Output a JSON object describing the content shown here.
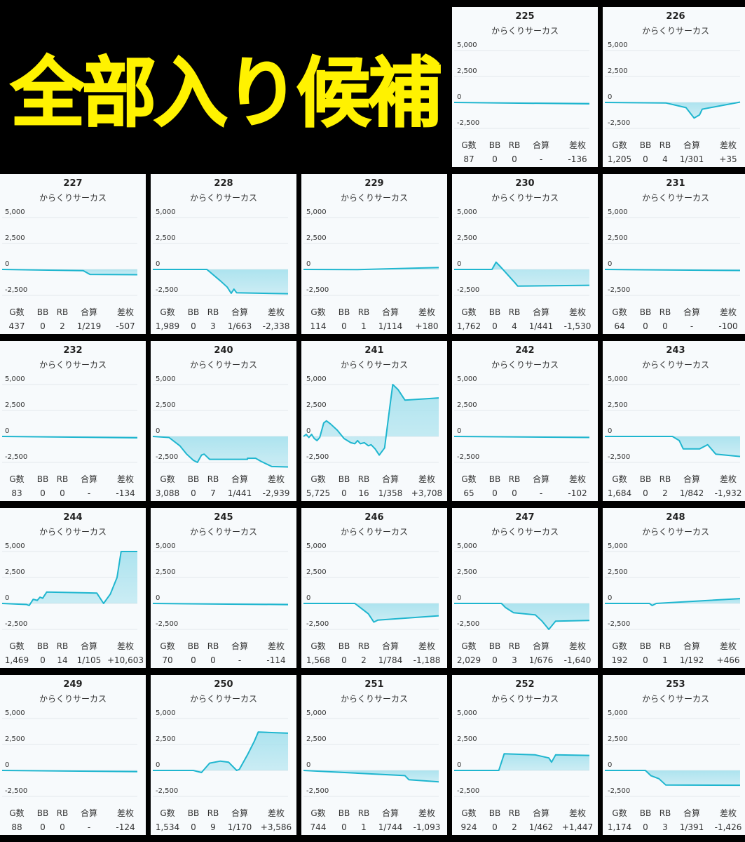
{
  "banner": {
    "text": "全部入り候補"
  },
  "colors": {
    "line": "#1fb6cf",
    "fill": "#a9e2ee",
    "card_bg": "#f7fafc",
    "banner_text": "#fff200"
  },
  "chart_data": {
    "type": "area",
    "y_ticks": [
      "5,000",
      "2,500",
      "0",
      "-2,500"
    ],
    "ylim": [
      -2500,
      5000
    ],
    "stats_headers": [
      "G数",
      "BB",
      "RB",
      "合算",
      "差枚"
    ],
    "machines": [
      {
        "id": "225",
        "name": "からくりサーカス",
        "stats": [
          "87",
          "0",
          "0",
          "-",
          "-136"
        ],
        "series": [
          [
            0,
            0
          ],
          [
            1,
            -136
          ]
        ]
      },
      {
        "id": "226",
        "name": "からくりサーカス",
        "stats": [
          "1,205",
          "0",
          "4",
          "1/301",
          "+35"
        ],
        "series": [
          [
            0,
            0
          ],
          [
            0.45,
            -50
          ],
          [
            0.6,
            -500
          ],
          [
            0.66,
            -1500
          ],
          [
            0.7,
            -1200
          ],
          [
            0.72,
            -650
          ],
          [
            1,
            35
          ]
        ]
      },
      {
        "id": "227",
        "name": "からくりサーカス",
        "stats": [
          "437",
          "0",
          "2",
          "1/219",
          "-507"
        ],
        "series": [
          [
            0,
            0
          ],
          [
            0.6,
            -120
          ],
          [
            0.65,
            -480
          ],
          [
            1,
            -507
          ]
        ]
      },
      {
        "id": "228",
        "name": "からくりサーカス",
        "stats": [
          "1,989",
          "0",
          "3",
          "1/663",
          "-2,338"
        ],
        "series": [
          [
            0,
            0
          ],
          [
            0.4,
            0
          ],
          [
            0.5,
            -1100
          ],
          [
            0.55,
            -1700
          ],
          [
            0.58,
            -2300
          ],
          [
            0.6,
            -1900
          ],
          [
            0.62,
            -2250
          ],
          [
            1,
            -2338
          ]
        ]
      },
      {
        "id": "229",
        "name": "からくりサーカス",
        "stats": [
          "114",
          "0",
          "1",
          "1/114",
          "+180"
        ],
        "series": [
          [
            0,
            0
          ],
          [
            0.4,
            -20
          ],
          [
            1,
            180
          ]
        ]
      },
      {
        "id": "230",
        "name": "からくりサーカス",
        "stats": [
          "1,762",
          "0",
          "4",
          "1/441",
          "-1,530"
        ],
        "series": [
          [
            0,
            0
          ],
          [
            0.28,
            0
          ],
          [
            0.31,
            700
          ],
          [
            0.34,
            300
          ],
          [
            0.45,
            -1300
          ],
          [
            0.47,
            -1600
          ],
          [
            1,
            -1530
          ]
        ]
      },
      {
        "id": "231",
        "name": "からくりサーカス",
        "stats": [
          "64",
          "0",
          "0",
          "-",
          "-100"
        ],
        "series": [
          [
            0,
            0
          ],
          [
            1,
            -100
          ]
        ]
      },
      {
        "id": "232",
        "name": "からくりサーカス",
        "stats": [
          "83",
          "0",
          "0",
          "-",
          "-134"
        ],
        "series": [
          [
            0,
            0
          ],
          [
            1,
            -134
          ]
        ]
      },
      {
        "id": "240",
        "name": "からくりサーカス",
        "stats": [
          "3,088",
          "0",
          "7",
          "1/441",
          "-2,939"
        ],
        "series": [
          [
            0,
            0
          ],
          [
            0.12,
            -100
          ],
          [
            0.2,
            -900
          ],
          [
            0.25,
            -1700
          ],
          [
            0.3,
            -2300
          ],
          [
            0.33,
            -2500
          ],
          [
            0.36,
            -1800
          ],
          [
            0.38,
            -1700
          ],
          [
            0.42,
            -2200
          ],
          [
            0.7,
            -2200
          ],
          [
            0.7,
            -2100
          ],
          [
            0.76,
            -2100
          ],
          [
            0.8,
            -2400
          ],
          [
            0.88,
            -2900
          ],
          [
            1,
            -2939
          ]
        ]
      },
      {
        "id": "241",
        "name": "からくりサーカス",
        "stats": [
          "5,725",
          "0",
          "16",
          "1/358",
          "+3,708"
        ],
        "series": [
          [
            0,
            0
          ],
          [
            0.02,
            200
          ],
          [
            0.04,
            -100
          ],
          [
            0.06,
            200
          ],
          [
            0.08,
            -200
          ],
          [
            0.1,
            -400
          ],
          [
            0.12,
            -100
          ],
          [
            0.15,
            1300
          ],
          [
            0.17,
            1500
          ],
          [
            0.2,
            1200
          ],
          [
            0.25,
            600
          ],
          [
            0.3,
            -200
          ],
          [
            0.35,
            -600
          ],
          [
            0.38,
            -700
          ],
          [
            0.4,
            -400
          ],
          [
            0.42,
            -700
          ],
          [
            0.45,
            -600
          ],
          [
            0.48,
            -900
          ],
          [
            0.5,
            -800
          ],
          [
            0.53,
            -1200
          ],
          [
            0.56,
            -1800
          ],
          [
            0.6,
            -1100
          ],
          [
            0.62,
            1000
          ],
          [
            0.64,
            3000
          ],
          [
            0.66,
            5000
          ],
          [
            0.7,
            4500
          ],
          [
            0.75,
            3500
          ],
          [
            1,
            3708
          ]
        ]
      },
      {
        "id": "242",
        "name": "からくりサーカス",
        "stats": [
          "65",
          "0",
          "0",
          "-",
          "-102"
        ],
        "series": [
          [
            0,
            0
          ],
          [
            1,
            -102
          ]
        ]
      },
      {
        "id": "243",
        "name": "からくりサーカス",
        "stats": [
          "1,684",
          "0",
          "2",
          "1/842",
          "-1,932"
        ],
        "series": [
          [
            0,
            0
          ],
          [
            0.5,
            0
          ],
          [
            0.55,
            -400
          ],
          [
            0.58,
            -1200
          ],
          [
            0.7,
            -1200
          ],
          [
            0.76,
            -800
          ],
          [
            0.82,
            -1700
          ],
          [
            1,
            -1932
          ]
        ]
      },
      {
        "id": "244",
        "name": "からくりサーカス",
        "stats": [
          "1,469",
          "0",
          "14",
          "1/105",
          "+10,603"
        ],
        "series": [
          [
            0,
            0
          ],
          [
            0.18,
            -100
          ],
          [
            0.2,
            -200
          ],
          [
            0.23,
            400
          ],
          [
            0.26,
            300
          ],
          [
            0.28,
            600
          ],
          [
            0.3,
            500
          ],
          [
            0.33,
            1100
          ],
          [
            0.7,
            1000
          ],
          [
            0.75,
            0
          ],
          [
            0.8,
            900
          ],
          [
            0.85,
            2500
          ],
          [
            0.88,
            5000
          ],
          [
            1,
            5000
          ]
        ]
      },
      {
        "id": "245",
        "name": "からくりサーカス",
        "stats": [
          "70",
          "0",
          "0",
          "-",
          "-114"
        ],
        "series": [
          [
            0,
            0
          ],
          [
            1,
            -114
          ]
        ]
      },
      {
        "id": "246",
        "name": "からくりサーカス",
        "stats": [
          "1,568",
          "0",
          "2",
          "1/784",
          "-1,188"
        ],
        "series": [
          [
            0,
            0
          ],
          [
            0.38,
            0
          ],
          [
            0.42,
            -400
          ],
          [
            0.48,
            -1000
          ],
          [
            0.52,
            -1800
          ],
          [
            0.55,
            -1600
          ],
          [
            1,
            -1188
          ]
        ]
      },
      {
        "id": "247",
        "name": "からくりサーカス",
        "stats": [
          "2,029",
          "0",
          "3",
          "1/676",
          "-1,640"
        ],
        "series": [
          [
            0,
            0
          ],
          [
            0.35,
            0
          ],
          [
            0.38,
            -400
          ],
          [
            0.44,
            -900
          ],
          [
            0.6,
            -1100
          ],
          [
            0.65,
            -1700
          ],
          [
            0.7,
            -2500
          ],
          [
            0.75,
            -1700
          ],
          [
            1,
            -1640
          ]
        ]
      },
      {
        "id": "248",
        "name": "からくりサーカス",
        "stats": [
          "192",
          "0",
          "1",
          "1/192",
          "+466"
        ],
        "series": [
          [
            0,
            0
          ],
          [
            0.33,
            0
          ],
          [
            0.35,
            -200
          ],
          [
            0.38,
            0
          ],
          [
            1,
            466
          ]
        ]
      },
      {
        "id": "249",
        "name": "からくりサーカス",
        "stats": [
          "88",
          "0",
          "0",
          "-",
          "-124"
        ],
        "series": [
          [
            0,
            0
          ],
          [
            1,
            -124
          ]
        ]
      },
      {
        "id": "250",
        "name": "からくりサーカス",
        "stats": [
          "1,534",
          "0",
          "9",
          "1/170",
          "+3,586"
        ],
        "series": [
          [
            0,
            0
          ],
          [
            0.3,
            0
          ],
          [
            0.36,
            -200
          ],
          [
            0.42,
            700
          ],
          [
            0.5,
            900
          ],
          [
            0.56,
            800
          ],
          [
            0.62,
            0
          ],
          [
            0.64,
            100
          ],
          [
            0.7,
            1500
          ],
          [
            0.75,
            2800
          ],
          [
            0.78,
            3700
          ],
          [
            1,
            3586
          ]
        ]
      },
      {
        "id": "251",
        "name": "からくりサーカス",
        "stats": [
          "744",
          "0",
          "1",
          "1/744",
          "-1,093"
        ],
        "series": [
          [
            0,
            0
          ],
          [
            0.75,
            -500
          ],
          [
            0.78,
            -900
          ],
          [
            1,
            -1093
          ]
        ]
      },
      {
        "id": "252",
        "name": "からくりサーカス",
        "stats": [
          "924",
          "0",
          "2",
          "1/462",
          "+1,447"
        ],
        "series": [
          [
            0,
            0
          ],
          [
            0.33,
            0
          ],
          [
            0.37,
            1600
          ],
          [
            0.6,
            1500
          ],
          [
            0.7,
            1200
          ],
          [
            0.72,
            800
          ],
          [
            0.75,
            1500
          ],
          [
            1,
            1447
          ]
        ]
      },
      {
        "id": "253",
        "name": "からくりサーカス",
        "stats": [
          "1,174",
          "0",
          "3",
          "1/391",
          "-1,426"
        ],
        "series": [
          [
            0,
            0
          ],
          [
            0.3,
            0
          ],
          [
            0.34,
            -500
          ],
          [
            0.4,
            -800
          ],
          [
            0.45,
            -1400
          ],
          [
            1,
            -1426
          ]
        ]
      }
    ]
  }
}
